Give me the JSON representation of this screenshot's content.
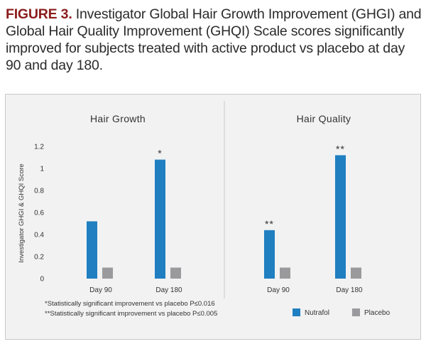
{
  "figure": {
    "label": "FIGURE 3.",
    "caption": "Investigator Global Hair Growth Improvement (GHGI) and Global Hair Quality Improvement (GHQI) Scale scores significantly improved for subjects treated with active product vs placebo at day 90 and day 180."
  },
  "colors": {
    "nutrafol": "#1f7fc1",
    "placebo": "#9a9a9c",
    "caption_label": "#8b1c1c"
  },
  "chart_data": {
    "type": "bar",
    "ylabel": "Investigator GHGI & GHQI Score",
    "ylim": [
      0,
      1.2
    ],
    "yticks": [
      "0",
      "0.2",
      "0.4",
      "0.6",
      "0.8",
      "1",
      "1.2"
    ],
    "grid": false,
    "legend_position": "bottom-right",
    "legend": [
      "Nutrafol",
      "Placebo"
    ],
    "panels": [
      {
        "title": "Hair Growth",
        "categories": [
          "Day  90",
          "Day  180"
        ],
        "series": [
          {
            "name": "Nutrafol",
            "values": [
              0.52,
              1.08
            ]
          },
          {
            "name": "Placebo",
            "values": [
              0.1,
              0.1
            ]
          }
        ],
        "annotations": [
          "",
          "*"
        ]
      },
      {
        "title": "Hair Quality",
        "categories": [
          "Day  90",
          "Day  180"
        ],
        "series": [
          {
            "name": "Nutrafol",
            "values": [
              0.44,
              1.12
            ]
          },
          {
            "name": "Placebo",
            "values": [
              0.1,
              0.1
            ]
          }
        ],
        "annotations": [
          "**",
          "**"
        ]
      }
    ],
    "footnotes": [
      "*Statistically significant improvement vs placebo P≤0.016",
      "**Statistically significant improvement vs placebo P≤0.005"
    ]
  }
}
